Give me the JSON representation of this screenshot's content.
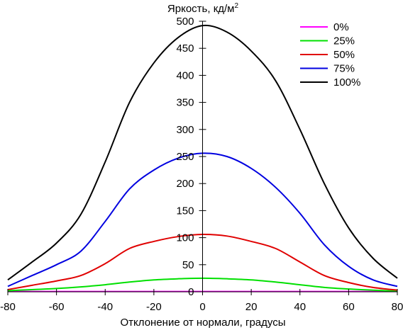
{
  "chart_data": {
    "type": "line",
    "title": "",
    "xlabel": "Отклонение от нормали, градусы",
    "ylabel": "Яркость, кд/м",
    "ylabel_sup": "2",
    "xlim": [
      -80,
      80
    ],
    "ylim": [
      0,
      500
    ],
    "xticks": [
      -80,
      -60,
      -40,
      -20,
      0,
      20,
      40,
      60,
      80
    ],
    "yticks": [
      0,
      50,
      100,
      150,
      200,
      250,
      300,
      350,
      400,
      450,
      500
    ],
    "grid": false,
    "legend_position": "top-right",
    "x": [
      -80,
      -70,
      -60,
      -50,
      -40,
      -30,
      -20,
      -10,
      0,
      10,
      20,
      30,
      40,
      50,
      60,
      70,
      80
    ],
    "series": [
      {
        "name": "0%",
        "color": "#ff00ff",
        "values": [
          0.5,
          0.5,
          0.5,
          0.5,
          0.5,
          0.5,
          0.5,
          0.5,
          0.5,
          0.5,
          0.5,
          0.5,
          0.5,
          0.5,
          0.5,
          0.5,
          0.5
        ]
      },
      {
        "name": "25%",
        "color": "#00e000",
        "values": [
          2,
          4,
          6,
          9,
          13,
          18,
          22,
          24,
          25,
          24,
          22,
          18,
          13,
          8,
          5,
          3,
          1
        ]
      },
      {
        "name": "50%",
        "color": "#e00000",
        "values": [
          4,
          12,
          20,
          30,
          52,
          80,
          93,
          102,
          106,
          103,
          93,
          80,
          55,
          30,
          17,
          8,
          3
        ]
      },
      {
        "name": "75%",
        "color": "#0000e0",
        "values": [
          10,
          30,
          50,
          75,
          130,
          190,
          225,
          247,
          256,
          250,
          228,
          193,
          145,
          87,
          47,
          22,
          10
        ]
      },
      {
        "name": "100%",
        "color": "#000000",
        "values": [
          22,
          55,
          90,
          143,
          240,
          350,
          423,
          470,
          492,
          480,
          445,
          390,
          300,
          200,
          118,
          62,
          25
        ]
      }
    ]
  }
}
